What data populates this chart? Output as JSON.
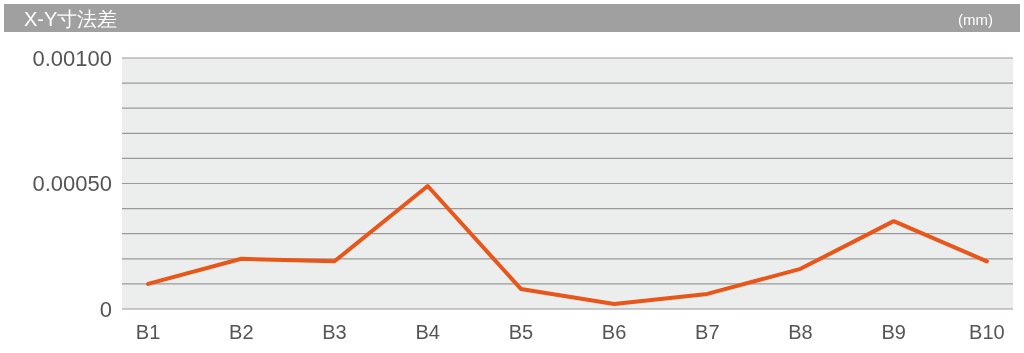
{
  "chart_data": {
    "type": "line",
    "title": "X-Y寸法差",
    "ylabel": "(mm)",
    "categories": [
      "B1",
      "B2",
      "B3",
      "B4",
      "B5",
      "B6",
      "B7",
      "B8",
      "B9",
      "B10"
    ],
    "series": [
      {
        "color": "#e8561a",
        "values": [
          0.0001,
          0.0002,
          0.00019,
          0.00049,
          8e-05,
          2e-05,
          6e-05,
          0.00016,
          0.00035,
          0.00019
        ]
      }
    ],
    "ylim": [
      0,
      0.001
    ],
    "yticks": [
      0,
      {
        "value": 0.0001,
        "label": null
      },
      {
        "value": 0.0002,
        "label": null
      },
      {
        "value": 0.0003,
        "label": null
      },
      {
        "value": 0.0004,
        "label": null
      },
      {
        "value": 0.0005,
        "label": "0.00050"
      },
      {
        "value": 0.0006,
        "label": null
      },
      {
        "value": 0.0007,
        "label": null
      },
      {
        "value": 0.0008,
        "label": null
      },
      {
        "value": 0.0009,
        "label": null
      },
      {
        "value": 0.001,
        "label": "0.00100"
      }
    ],
    "grid": "y",
    "marker": "none",
    "line_style": "solid"
  }
}
